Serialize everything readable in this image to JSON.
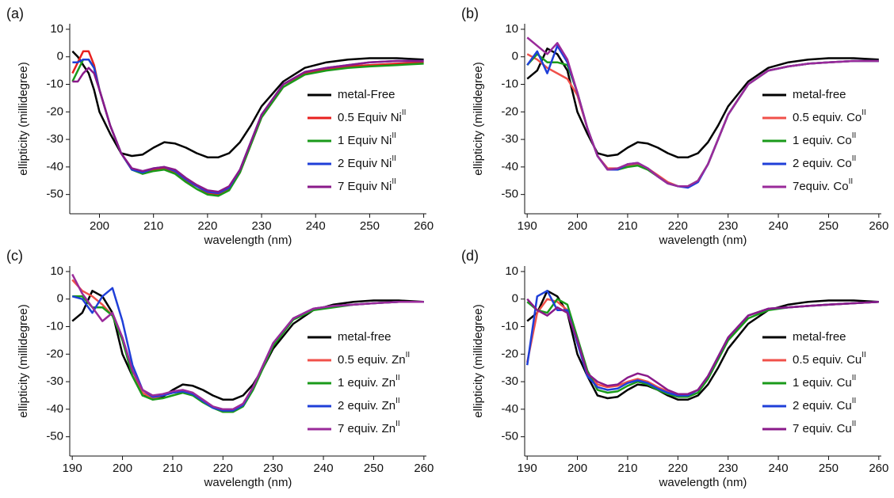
{
  "chart_data": [
    {
      "type": "line",
      "title": "(a)",
      "xlabel": "wavelength (nm)",
      "ylabel": "ellipticity (millidegree)",
      "x": [
        195,
        196,
        197,
        198,
        199,
        200,
        202,
        204,
        206,
        208,
        210,
        212,
        214,
        216,
        218,
        220,
        222,
        224,
        226,
        228,
        230,
        234,
        238,
        242,
        246,
        250,
        255,
        260
      ],
      "xlim": [
        194.5,
        260.5
      ],
      "xticks": [
        200,
        210,
        220,
        230,
        240,
        250,
        260
      ],
      "ylim": [
        -57,
        12
      ],
      "yticks": [
        10,
        0,
        -10,
        -20,
        -30,
        -40,
        -50
      ],
      "legend": "right",
      "series": [
        {
          "name": "metal-Free",
          "color": "#000000",
          "values": [
            2,
            0,
            -3,
            -6,
            -12,
            -20,
            -28,
            -35,
            -36,
            -35.5,
            -33,
            -31,
            -31.5,
            -33,
            -35,
            -36.5,
            -36.5,
            -35,
            -31,
            -25,
            -18,
            -9,
            -4,
            -2,
            -1,
            -0.5,
            -0.5,
            -1
          ]
        },
        {
          "name": "0.5 Equiv Ni",
          "superscript": "II",
          "color": "#e8201f",
          "values": [
            -6,
            -2,
            2,
            2,
            -3,
            -12,
            -25,
            -35,
            -41,
            -42,
            -41,
            -40.5,
            -42,
            -45,
            -47,
            -49.5,
            -50,
            -48,
            -42,
            -32,
            -22,
            -11,
            -6,
            -4.5,
            -3.5,
            -3,
            -2.5,
            -2
          ]
        },
        {
          "name": "1 Equiv Ni",
          "superscript": "II",
          "color": "#1a9a1a",
          "values": [
            -9,
            -5,
            -1,
            -1,
            -4,
            -12,
            -25,
            -35,
            -41,
            -42.5,
            -41.5,
            -41,
            -42.5,
            -45.5,
            -48,
            -50,
            -50.5,
            -48.5,
            -42,
            -32,
            -22,
            -11,
            -6.5,
            -5,
            -4,
            -3.5,
            -3,
            -2.5
          ]
        },
        {
          "name": "2 Equiv Ni",
          "superscript": "II",
          "color": "#1f3fd8",
          "values": [
            -2,
            -2,
            -1,
            -1,
            -4,
            -12,
            -25,
            -35,
            -41,
            -42,
            -40.5,
            -40,
            -41.5,
            -44.5,
            -47,
            -49,
            -49.5,
            -47.5,
            -41,
            -31,
            -21,
            -10,
            -5.5,
            -4,
            -3,
            -2,
            -1.5,
            -1.5
          ]
        },
        {
          "name": "7 Equiv Ni",
          "superscript": "II",
          "color": "#8a1a8a",
          "values": [
            -9,
            -9,
            -6,
            -4,
            -6,
            -12,
            -25,
            -35,
            -40.5,
            -41.5,
            -40.5,
            -40,
            -41,
            -44,
            -46.5,
            -48.5,
            -49,
            -47,
            -41,
            -31,
            -21,
            -10,
            -5.5,
            -4,
            -3,
            -2,
            -1.5,
            -1.5
          ]
        }
      ]
    },
    {
      "type": "line",
      "title": "(b)",
      "xlabel": "wavelength (nm)",
      "ylabel": "ellipticity (millidegree)",
      "x": [
        190,
        192,
        194,
        196,
        198,
        200,
        202,
        204,
        206,
        208,
        210,
        212,
        214,
        216,
        218,
        220,
        222,
        224,
        226,
        228,
        230,
        234,
        238,
        242,
        246,
        250,
        255,
        260
      ],
      "xlim": [
        189.5,
        260.5
      ],
      "xticks": [
        190,
        200,
        210,
        220,
        230,
        240,
        250,
        260
      ],
      "ylim": [
        -57,
        12
      ],
      "yticks": [
        10,
        0,
        -10,
        -20,
        -30,
        -40,
        -50
      ],
      "legend": "right",
      "series": [
        {
          "name": "metal-free",
          "color": "#000000",
          "values": [
            -8,
            -5,
            3,
            1,
            -5,
            -20,
            -28,
            -35,
            -36,
            -35.5,
            -33,
            -31,
            -31.5,
            -33,
            -35,
            -36.5,
            -36.5,
            -35,
            -31,
            -25,
            -18,
            -9,
            -4,
            -2,
            -1,
            -0.5,
            -0.5,
            -1
          ]
        },
        {
          "name": "0.5 equiv. Co",
          "superscript": "II",
          "color": "#f0504a",
          "values": [
            1,
            -1,
            -4,
            -6,
            -8,
            -14,
            -26,
            -36,
            -40.5,
            -40.5,
            -39.5,
            -39,
            -40.5,
            -43,
            -45.5,
            -47,
            -47,
            -45,
            -39,
            -30,
            -21,
            -10,
            -5,
            -3.5,
            -2.5,
            -2,
            -1.5,
            -1.5
          ]
        },
        {
          "name": "1 equiv. Co",
          "superscript": "II",
          "color": "#1a9a1a",
          "values": [
            -3,
            1,
            -2,
            -2,
            -3,
            -13,
            -26,
            -36,
            -41,
            -41,
            -40,
            -39.5,
            -41,
            -43.5,
            -46,
            -47,
            -47,
            -45,
            -39,
            -30,
            -21,
            -10,
            -5,
            -3.5,
            -2.5,
            -2,
            -1.5,
            -1.5
          ]
        },
        {
          "name": "2 equiv. Co",
          "superscript": "II",
          "color": "#1f3fd8",
          "values": [
            -3,
            2,
            -6,
            4,
            -2,
            -13,
            -26,
            -36,
            -41,
            -41,
            -39,
            -38.5,
            -40.5,
            -43.5,
            -46,
            -47,
            -47.5,
            -45.5,
            -39,
            -30,
            -21,
            -10,
            -5,
            -3.5,
            -2.5,
            -2,
            -1.5,
            -1.5
          ]
        },
        {
          "name": "7equiv. Co",
          "superscript": "II",
          "color": "#9a2a9a",
          "values": [
            7,
            4,
            1,
            5,
            -1,
            -13,
            -26,
            -36,
            -41,
            -40.5,
            -39,
            -38.5,
            -40.5,
            -43.5,
            -46,
            -47,
            -47,
            -45,
            -39,
            -30,
            -21,
            -10,
            -5,
            -3.5,
            -2.5,
            -2,
            -1.5,
            -1.5
          ]
        }
      ]
    },
    {
      "type": "line",
      "title": "(c)",
      "xlabel": "wavelength (nm)",
      "ylabel": "ellipticity (millidegree)",
      "x": [
        190,
        192,
        194,
        196,
        198,
        200,
        202,
        204,
        206,
        208,
        210,
        212,
        214,
        216,
        218,
        220,
        222,
        224,
        226,
        228,
        230,
        234,
        238,
        242,
        246,
        250,
        255,
        260
      ],
      "xlim": [
        189.5,
        260.5
      ],
      "xticks": [
        190,
        200,
        210,
        220,
        230,
        240,
        250,
        260
      ],
      "ylim": [
        -57,
        12
      ],
      "yticks": [
        10,
        0,
        -10,
        -20,
        -30,
        -40,
        -50
      ],
      "legend": "right",
      "series": [
        {
          "name": "metal-free",
          "color": "#000000",
          "values": [
            -8,
            -5,
            3,
            1,
            -5,
            -20,
            -28,
            -35,
            -36,
            -35.5,
            -33,
            -31,
            -31.5,
            -33,
            -35,
            -36.5,
            -36.5,
            -35,
            -31,
            -25,
            -18,
            -9,
            -4,
            -2,
            -1,
            -0.5,
            -0.5,
            -1
          ]
        },
        {
          "name": "0.5 equiv. Zn",
          "superscript": "II",
          "color": "#f0504a",
          "values": [
            7,
            3,
            1,
            -2,
            -6,
            -14,
            -26,
            -34,
            -36,
            -35,
            -34,
            -33.5,
            -34.5,
            -37,
            -39,
            -40.5,
            -40.5,
            -38,
            -32,
            -24,
            -16,
            -7,
            -3.5,
            -2.5,
            -2,
            -1.5,
            -1,
            -1
          ]
        },
        {
          "name": "1 equiv. Zn",
          "superscript": "II",
          "color": "#1a9a1a",
          "values": [
            1,
            1,
            -3,
            -3,
            -6,
            -15,
            -28,
            -35,
            -36.5,
            -36,
            -35,
            -34,
            -35,
            -37.5,
            -39.5,
            -41,
            -41,
            -39,
            -33,
            -25,
            -17,
            -7.5,
            -4,
            -3,
            -2,
            -1.5,
            -1,
            -1
          ]
        },
        {
          "name": "2 equiv. Zn",
          "superscript": "II",
          "color": "#1f3fd8",
          "values": [
            1,
            0,
            -5,
            1,
            4,
            -8,
            -24,
            -33,
            -35.5,
            -35,
            -34,
            -33.5,
            -34.5,
            -37,
            -39.5,
            -40.5,
            -40.5,
            -38.5,
            -32,
            -24,
            -16,
            -7,
            -3.5,
            -2.5,
            -2,
            -1.5,
            -1,
            -1
          ]
        },
        {
          "name": "7 equiv. Zn",
          "superscript": "II",
          "color": "#9a2a9a",
          "values": [
            9,
            2,
            -3,
            -8,
            -5,
            -14,
            -26,
            -33,
            -35,
            -34.5,
            -33.5,
            -33,
            -34,
            -36.5,
            -39,
            -40,
            -40,
            -38,
            -32,
            -24,
            -16,
            -7,
            -3.5,
            -2.5,
            -2,
            -1.5,
            -1,
            -1
          ]
        }
      ]
    },
    {
      "type": "line",
      "title": "(d)",
      "xlabel": "wavelength (nm)",
      "ylabel": "ellipticity (millidegree)",
      "x": [
        190,
        192,
        194,
        196,
        198,
        200,
        202,
        204,
        206,
        208,
        210,
        212,
        214,
        216,
        218,
        220,
        222,
        224,
        226,
        228,
        230,
        234,
        238,
        242,
        246,
        250,
        255,
        260
      ],
      "xlim": [
        189.5,
        260.5
      ],
      "xticks": [
        190,
        200,
        210,
        220,
        230,
        240,
        250,
        260
      ],
      "ylim": [
        -57,
        12
      ],
      "yticks": [
        10,
        0,
        -10,
        -20,
        -30,
        -40,
        -50
      ],
      "legend": "right",
      "series": [
        {
          "name": "metal-free",
          "color": "#000000",
          "values": [
            -8,
            -5,
            3,
            1,
            -5,
            -20,
            -28,
            -35,
            -36,
            -35.5,
            -33,
            -31,
            -31.5,
            -33,
            -35,
            -36.5,
            -36.5,
            -35,
            -31,
            -25,
            -18,
            -9,
            -4,
            -2,
            -1,
            -0.5,
            -0.5,
            -1
          ]
        },
        {
          "name": "0.5 equiv. Cu",
          "superscript": "II",
          "color": "#f0504a",
          "values": [
            -23,
            -5,
            0,
            -1,
            -4,
            -15,
            -27,
            -31,
            -32,
            -31.5,
            -30,
            -29,
            -30,
            -32,
            -33.5,
            -34.5,
            -34.5,
            -33,
            -28,
            -21,
            -14,
            -6,
            -3.5,
            -3,
            -2.5,
            -2,
            -1.5,
            -1
          ]
        },
        {
          "name": "1 equiv. Cu",
          "superscript": "II",
          "color": "#1a9a1a",
          "values": [
            -1,
            -4,
            -5,
            0,
            -2,
            -14,
            -26,
            -33,
            -34,
            -33.5,
            -31.5,
            -30,
            -31,
            -33,
            -34.5,
            -35.5,
            -35.5,
            -34,
            -29,
            -22,
            -15,
            -7,
            -4,
            -3,
            -2.5,
            -2,
            -1.5,
            -1
          ]
        },
        {
          "name": "2 equiv. Cu",
          "superscript": "II",
          "color": "#1f3fd8",
          "values": [
            -24,
            1,
            3,
            -4,
            -4,
            -16,
            -28,
            -32,
            -33,
            -32.5,
            -30.5,
            -29.5,
            -30.5,
            -32.5,
            -34,
            -35,
            -35,
            -33,
            -28,
            -21,
            -14,
            -6,
            -3.5,
            -3,
            -2.5,
            -2,
            -1.5,
            -1
          ]
        },
        {
          "name": "7 equiv. Cu",
          "superscript": "II",
          "color": "#8a1a8a",
          "values": [
            0,
            -4,
            -6,
            -3,
            -5,
            -15,
            -27,
            -30,
            -31.5,
            -31,
            -28.5,
            -27,
            -28,
            -30.5,
            -33,
            -34.5,
            -34.5,
            -33,
            -28,
            -21,
            -14,
            -6,
            -3.5,
            -3,
            -2.5,
            -2,
            -1.5,
            -1
          ]
        }
      ]
    }
  ]
}
